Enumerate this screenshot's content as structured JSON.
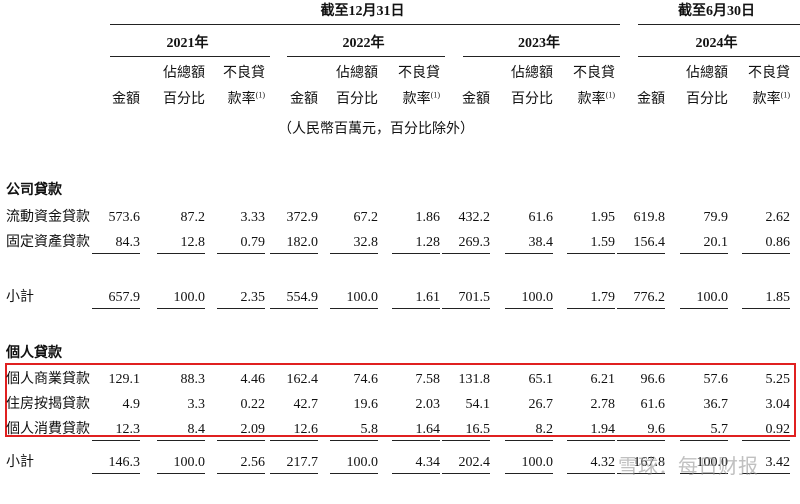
{
  "header": {
    "periods": [
      {
        "label": "截至12月31日"
      },
      {
        "label": "截至6月30日"
      }
    ],
    "years": [
      "2021年",
      "2022年",
      "2023年",
      "2024年"
    ],
    "columns": [
      {
        "line2": "金額"
      },
      {
        "line1": "佔總額",
        "line2": "百分比"
      },
      {
        "line1": "不良貸",
        "line2": "款率",
        "note": "(1)"
      }
    ],
    "unit_note": "（人民幣百萬元，百分比除外）"
  },
  "sections": [
    {
      "title": "公司貸款",
      "rows": [
        {
          "label": "流動資金貸款",
          "cells": [
            "573.6",
            "87.2",
            "3.33",
            "372.9",
            "67.2",
            "1.86",
            "432.2",
            "61.6",
            "1.95",
            "619.8",
            "79.9",
            "2.62"
          ]
        },
        {
          "label": "固定資產貸款",
          "cells": [
            "84.3",
            "12.8",
            "0.79",
            "182.0",
            "32.8",
            "1.28",
            "269.3",
            "38.4",
            "1.59",
            "156.4",
            "20.1",
            "0.86"
          ]
        }
      ],
      "subtotal": {
        "label": "小計",
        "cells": [
          "657.9",
          "100.0",
          "2.35",
          "554.9",
          "100.0",
          "1.61",
          "701.5",
          "100.0",
          "1.79",
          "776.2",
          "100.0",
          "1.85"
        ]
      }
    },
    {
      "title": "個人貸款",
      "rows": [
        {
          "label": "個人商業貸款",
          "cells": [
            "129.1",
            "88.3",
            "4.46",
            "162.4",
            "74.6",
            "7.58",
            "131.8",
            "65.1",
            "6.21",
            "96.6",
            "57.6",
            "5.25"
          ]
        },
        {
          "label": "住房按揭貸款",
          "cells": [
            "4.9",
            "3.3",
            "0.22",
            "42.7",
            "19.6",
            "2.03",
            "54.1",
            "26.7",
            "2.78",
            "61.6",
            "36.7",
            "3.04"
          ]
        },
        {
          "label": "個人消費貸款",
          "cells": [
            "12.3",
            "8.4",
            "2.09",
            "12.6",
            "5.8",
            "1.64",
            "16.5",
            "8.2",
            "1.94",
            "9.6",
            "5.7",
            "0.92"
          ]
        }
      ],
      "subtotal": {
        "label": "小計",
        "cells": [
          "146.3",
          "100.0",
          "2.56",
          "217.7",
          "100.0",
          "4.34",
          "202.4",
          "100.0",
          "4.32",
          "167.8",
          "100.0",
          "3.42"
        ]
      }
    }
  ],
  "watermark": "雪球：每日财报"
}
